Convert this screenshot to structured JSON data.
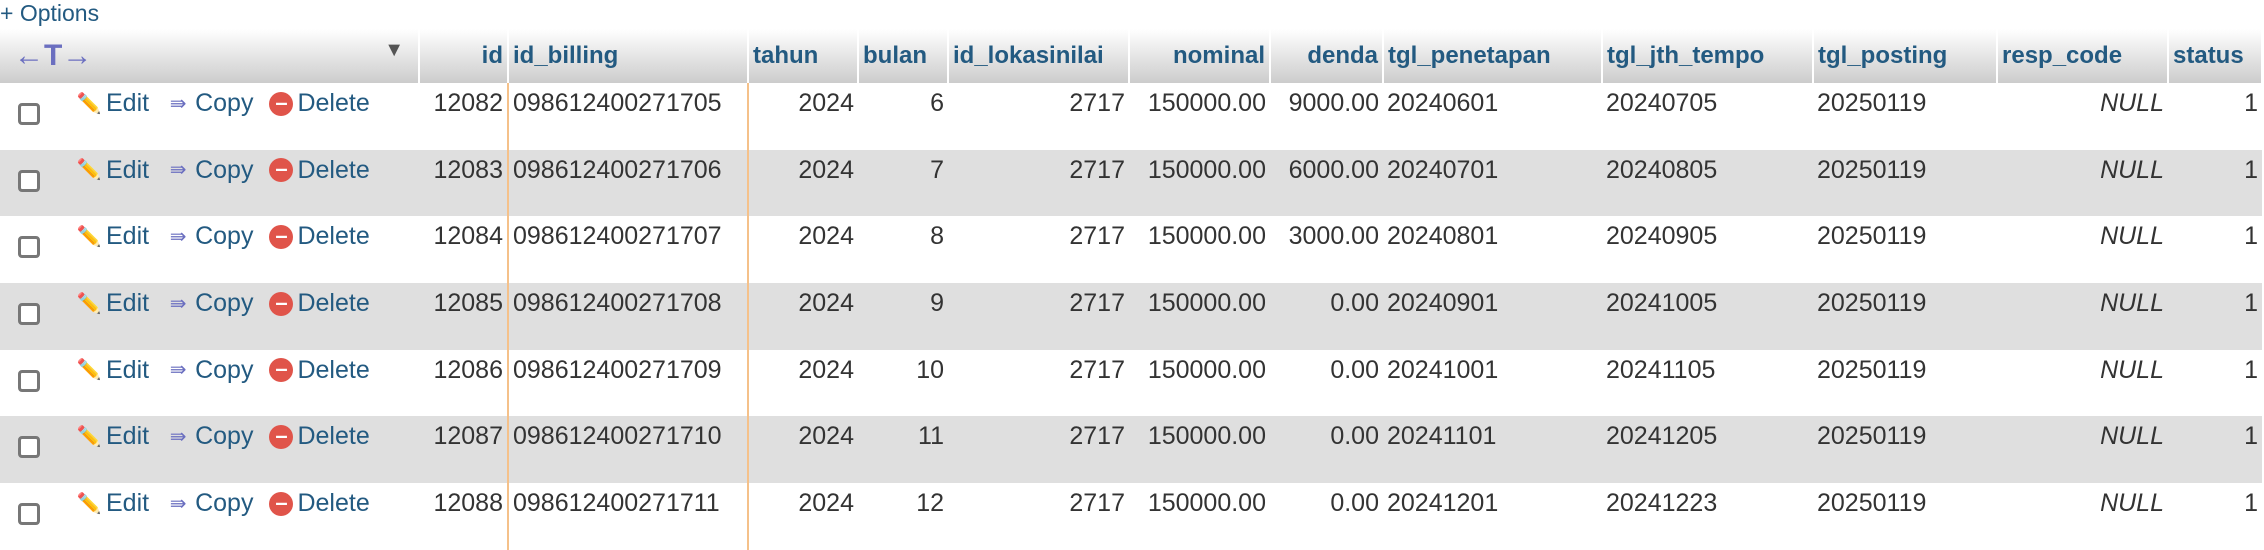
{
  "options_label": "+ Options",
  "header": {
    "columns": [
      "id",
      "id_billing",
      "tahun",
      "bulan",
      "id_lokasinilai",
      "nominal",
      "denda",
      "tgl_penetapan",
      "tgl_jth_tempo",
      "tgl_posting",
      "resp_code",
      "status"
    ]
  },
  "actions": {
    "edit": "Edit",
    "copy": "Copy",
    "delete": "Delete"
  },
  "rows": [
    [
      "12082",
      "098612400271705",
      "2024",
      "6",
      "2717",
      "150000.00",
      "9000.00",
      "20240601",
      "20240705",
      "20250119",
      "NULL",
      "1"
    ],
    [
      "12083",
      "098612400271706",
      "2024",
      "7",
      "2717",
      "150000.00",
      "6000.00",
      "20240701",
      "20240805",
      "20250119",
      "NULL",
      "1"
    ],
    [
      "12084",
      "098612400271707",
      "2024",
      "8",
      "2717",
      "150000.00",
      "3000.00",
      "20240801",
      "20240905",
      "20250119",
      "NULL",
      "1"
    ],
    [
      "12085",
      "098612400271708",
      "2024",
      "9",
      "2717",
      "150000.00",
      "0.00",
      "20240901",
      "20241005",
      "20250119",
      "NULL",
      "1"
    ],
    [
      "12086",
      "098612400271709",
      "2024",
      "10",
      "2717",
      "150000.00",
      "0.00",
      "20241001",
      "20241105",
      "20250119",
      "NULL",
      "1"
    ],
    [
      "12087",
      "098612400271710",
      "2024",
      "11",
      "2717",
      "150000.00",
      "0.00",
      "20241101",
      "20241205",
      "20250119",
      "NULL",
      "1"
    ],
    [
      "12088",
      "098612400271711",
      "2024",
      "12",
      "2717",
      "150000.00",
      "0.00",
      "20241201",
      "20241223",
      "20250119",
      "NULL",
      "1"
    ]
  ]
}
